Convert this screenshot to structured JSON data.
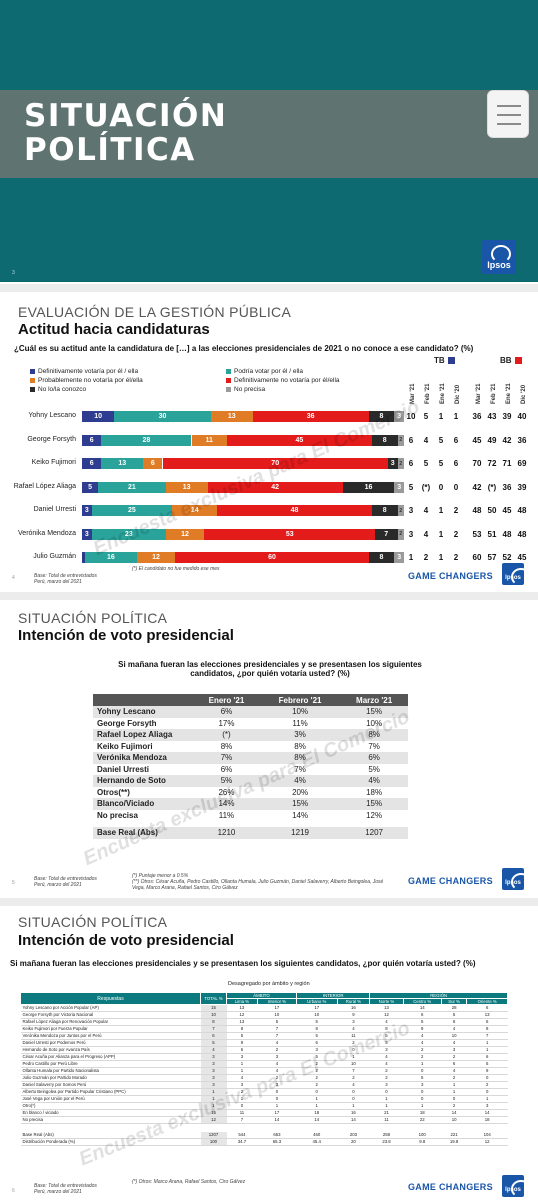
{
  "slide1": {
    "title_line1": "SITUACIÓN",
    "title_line2": "POLÍTICA",
    "page": "3",
    "logo": "Ipsos"
  },
  "slide2": {
    "kicker": "EVALUACIÓN DE LA GESTIÓN PÚBLICA",
    "title": "Actitud hacia candidaturas",
    "question": "¿Cuál es su actitud ante la candidatura de […] a las elecciones presidenciales de 2021 o no conoce a ese candidato? (%)",
    "legend": [
      {
        "label": "Definitivamente votaría por él / ella",
        "color": "#2e3d8f"
      },
      {
        "label": "Probablemente no votaría por él/ella",
        "color": "#e07b26"
      },
      {
        "label": "No lo/la conozco",
        "color": "#2a2a2a"
      },
      {
        "label": "Podría votar por él / ella",
        "color": "#2aa39b"
      },
      {
        "label": "Definitivamente no votaría por él/ella",
        "color": "#e31b1b"
      },
      {
        "label": "No precisa",
        "color": "#9a9a9a"
      }
    ],
    "tb_label": "TB",
    "bb_label": "BB",
    "tb_color": "#2e3d8f",
    "bb_color": "#e31b1b",
    "months": [
      "Mar '21",
      "Feb '21",
      "Ene '21",
      "Dic '20"
    ],
    "candidates": [
      {
        "name": "Yohny Lescano",
        "segs": [
          10,
          30,
          13,
          36,
          8,
          3
        ],
        "tb": [
          "10",
          "5",
          "1",
          "1"
        ],
        "bb": [
          "36",
          "43",
          "39",
          "40"
        ]
      },
      {
        "name": "George Forsyth",
        "segs": [
          6,
          28,
          11,
          45,
          8,
          2
        ],
        "tb": [
          "6",
          "4",
          "5",
          "6"
        ],
        "bb": [
          "45",
          "49",
          "42",
          "36"
        ]
      },
      {
        "name": "Keiko Fujimori",
        "segs": [
          6,
          13,
          6,
          70,
          3,
          2
        ],
        "tb": [
          "6",
          "5",
          "5",
          "6"
        ],
        "bb": [
          "70",
          "72",
          "71",
          "69"
        ]
      },
      {
        "name": "Rafael López Aliaga",
        "segs": [
          5,
          21,
          13,
          42,
          16,
          3
        ],
        "tb": [
          "5",
          "(*)",
          "0",
          "0"
        ],
        "bb": [
          "42",
          "(*)",
          "36",
          "39"
        ]
      },
      {
        "name": "Daniel Urresti",
        "segs": [
          3,
          25,
          14,
          48,
          8,
          2
        ],
        "tb": [
          "3",
          "4",
          "1",
          "2"
        ],
        "bb": [
          "48",
          "50",
          "45",
          "48"
        ]
      },
      {
        "name": "Verónika Mendoza",
        "segs": [
          3,
          23,
          12,
          53,
          7,
          2
        ],
        "tb": [
          "3",
          "4",
          "1",
          "2"
        ],
        "bb": [
          "53",
          "51",
          "48",
          "48"
        ]
      },
      {
        "name": "Julio Guzmán",
        "segs": [
          1,
          16,
          12,
          60,
          8,
          3
        ],
        "tb": [
          "1",
          "2",
          "1",
          "2"
        ],
        "bb": [
          "60",
          "57",
          "52",
          "45"
        ]
      }
    ],
    "footnote": "(*) El candidato no fue medido ese mes",
    "base_note_1": "Base: Total de entrevistados",
    "base_note_2": "Perú, marzo del 2021",
    "page": "4",
    "brand": "GAME CHANGERS",
    "logo": "Ipsos",
    "watermark": "Encuesta exclusiva para El Comercio"
  },
  "slide3": {
    "kicker": "SITUACIÓN POLÍTICA",
    "title": "Intención de voto presidencial",
    "question": "Si mañana fueran las elecciones presidenciales y se presentasen los siguientes candidatos, ¿por quién votaría usted? (%)",
    "columns": [
      "",
      "Enero '21",
      "Febrero '21",
      "Marzo '21"
    ],
    "rows": [
      [
        "Yohny Lescano",
        "6%",
        "10%",
        "15%"
      ],
      [
        "George Forsyth",
        "17%",
        "11%",
        "10%"
      ],
      [
        "Rafael Lopez Aliaga",
        "(*)",
        "3%",
        "8%"
      ],
      [
        "Keiko Fujimori",
        "8%",
        "8%",
        "7%"
      ],
      [
        "Verónika Mendoza",
        "7%",
        "8%",
        "6%"
      ],
      [
        "Daniel Urresti",
        "6%",
        "7%",
        "5%"
      ],
      [
        "Hernando de Soto",
        "5%",
        "4%",
        "4%"
      ],
      [
        "Otros(**)",
        "26%",
        "20%",
        "18%"
      ],
      [
        "Blanco/Viciado",
        "14%",
        "15%",
        "15%"
      ],
      [
        "No precisa",
        "11%",
        "14%",
        "12%"
      ]
    ],
    "base_row": [
      "Base Real (Abs)",
      "1210",
      "1219",
      "1207"
    ],
    "footnote_1": "(*) Puntaje menor a 0.5%",
    "footnote_2": "(**) Otros: César Acuña, Pedro Castillo, Ollanta Humala, Julio Guzmán, Daniel Salaverry, Alberto Beingolea, José Vega, Marco Arana, Rafael Santos, Ciro Gálvez",
    "base_note_1": "Base: Total de entrevistados",
    "base_note_2": "Perú, marzo del 2021",
    "page": "5",
    "brand": "GAME CHANGERS",
    "logo": "Ipsos",
    "watermark": "Encuesta exclusiva para El Comercio"
  },
  "slide4": {
    "kicker": "SITUACIÓN POLÍTICA",
    "title": "Intención de voto presidencial",
    "question": "Si mañana fueran las elecciones presidenciales y se presentasen los siguientes candidatos, ¿por quién votaría usted? (%)",
    "subtitle": "Desagregado por ámbito y región",
    "group_headers": [
      "ÁMBITO",
      "INTERIOR",
      "REGIÓN"
    ],
    "col_headers": [
      "Respuestas",
      "TOTAL %",
      "Lima %",
      "Interior %",
      "Urbano %",
      "Rural %",
      "Norte %",
      "Centro %",
      "Sur %",
      "Oriente %"
    ],
    "rows": [
      [
        "Yohny Lescano por Acción Popular (AP)",
        "15",
        "13",
        "17",
        "17",
        "16",
        "13",
        "14",
        "28",
        "6"
      ],
      [
        "George Forsyth por Victoria Nacional",
        "10",
        "12",
        "10",
        "10",
        "9",
        "12",
        "6",
        "5",
        "13"
      ],
      [
        "Rafael López Aliaga por Renovación Popular",
        "8",
        "13",
        "5",
        "5",
        "3",
        "4",
        "5",
        "6",
        "6"
      ],
      [
        "Keiko Fujimori por Fuerza Popular",
        "7",
        "8",
        "7",
        "8",
        "4",
        "8",
        "9",
        "4",
        "8"
      ],
      [
        "Verónika Mendoza por Juntos por el Perú",
        "6",
        "5",
        "7",
        "5",
        "11",
        "5",
        "4",
        "10",
        "7"
      ],
      [
        "Daniel Urresti por Podemos Perú",
        "5",
        "9",
        "4",
        "6",
        "2",
        "5",
        "4",
        "4",
        "1"
      ],
      [
        "Hernando de Soto por Avanza País",
        "4",
        "6",
        "2",
        "3",
        "0",
        "3",
        "2",
        "3",
        "1"
      ],
      [
        "César Acuña por Alianza para el Progreso (APP)",
        "3",
        "3",
        "3",
        "5",
        "1",
        "4",
        "2",
        "2",
        "6"
      ],
      [
        "Pedro Castillo por Perú Libre",
        "3",
        "1",
        "4",
        "2",
        "10",
        "4",
        "1",
        "6",
        "5"
      ],
      [
        "Ollanta Humala por Partido Nacionalista",
        "3",
        "1",
        "4",
        "2",
        "7",
        "2",
        "0",
        "4",
        "9"
      ],
      [
        "Julio Guzmán por Partido Morado",
        "3",
        "4",
        "2",
        "2",
        "2",
        "2",
        "5",
        "2",
        "0"
      ],
      [
        "Daniel Salaverry por Somos Perú",
        "3",
        "3",
        "3",
        "2",
        "4",
        "3",
        "3",
        "1",
        "2"
      ],
      [
        "Alberto Beingolea por Partido Popular Cristiano (PPC)",
        "1",
        "2",
        "0",
        "0",
        "0",
        "0",
        "0",
        "1",
        "0"
      ],
      [
        "José Vega por Unión por el Perú",
        "1",
        "1",
        "0",
        "1",
        "0",
        "1",
        "0",
        "0",
        "1"
      ],
      [
        "Otro(*)",
        "1",
        "0",
        "1",
        "1",
        "1",
        "1",
        "1",
        "2",
        "3"
      ],
      [
        "En blanco / viciado",
        "15",
        "11",
        "17",
        "18",
        "16",
        "21",
        "18",
        "14",
        "14"
      ],
      [
        "No precisa",
        "12",
        "7",
        "14",
        "14",
        "14",
        "11",
        "22",
        "10",
        "18"
      ]
    ],
    "base_rows": [
      [
        "Base Real (Abs)",
        "1207",
        "544",
        "663",
        "460",
        "203",
        "258",
        "100",
        "221",
        "104"
      ],
      [
        "Distribución Ponderada (%)",
        "100",
        "34.7",
        "65.3",
        "45.4",
        "20",
        "23.8",
        "9.8",
        "19.8",
        "12"
      ]
    ],
    "footnote": "(*) Otros: Marco Arana, Rafael Santos, Ciro Gálvez",
    "base_note_1": "Base: Total de entrevistados",
    "base_note_2": "Perú, marzo del 2021",
    "page": "6",
    "brand": "GAME CHANGERS",
    "logo": "Ipsos",
    "watermark": "Encuesta exclusiva para El Comercio"
  }
}
